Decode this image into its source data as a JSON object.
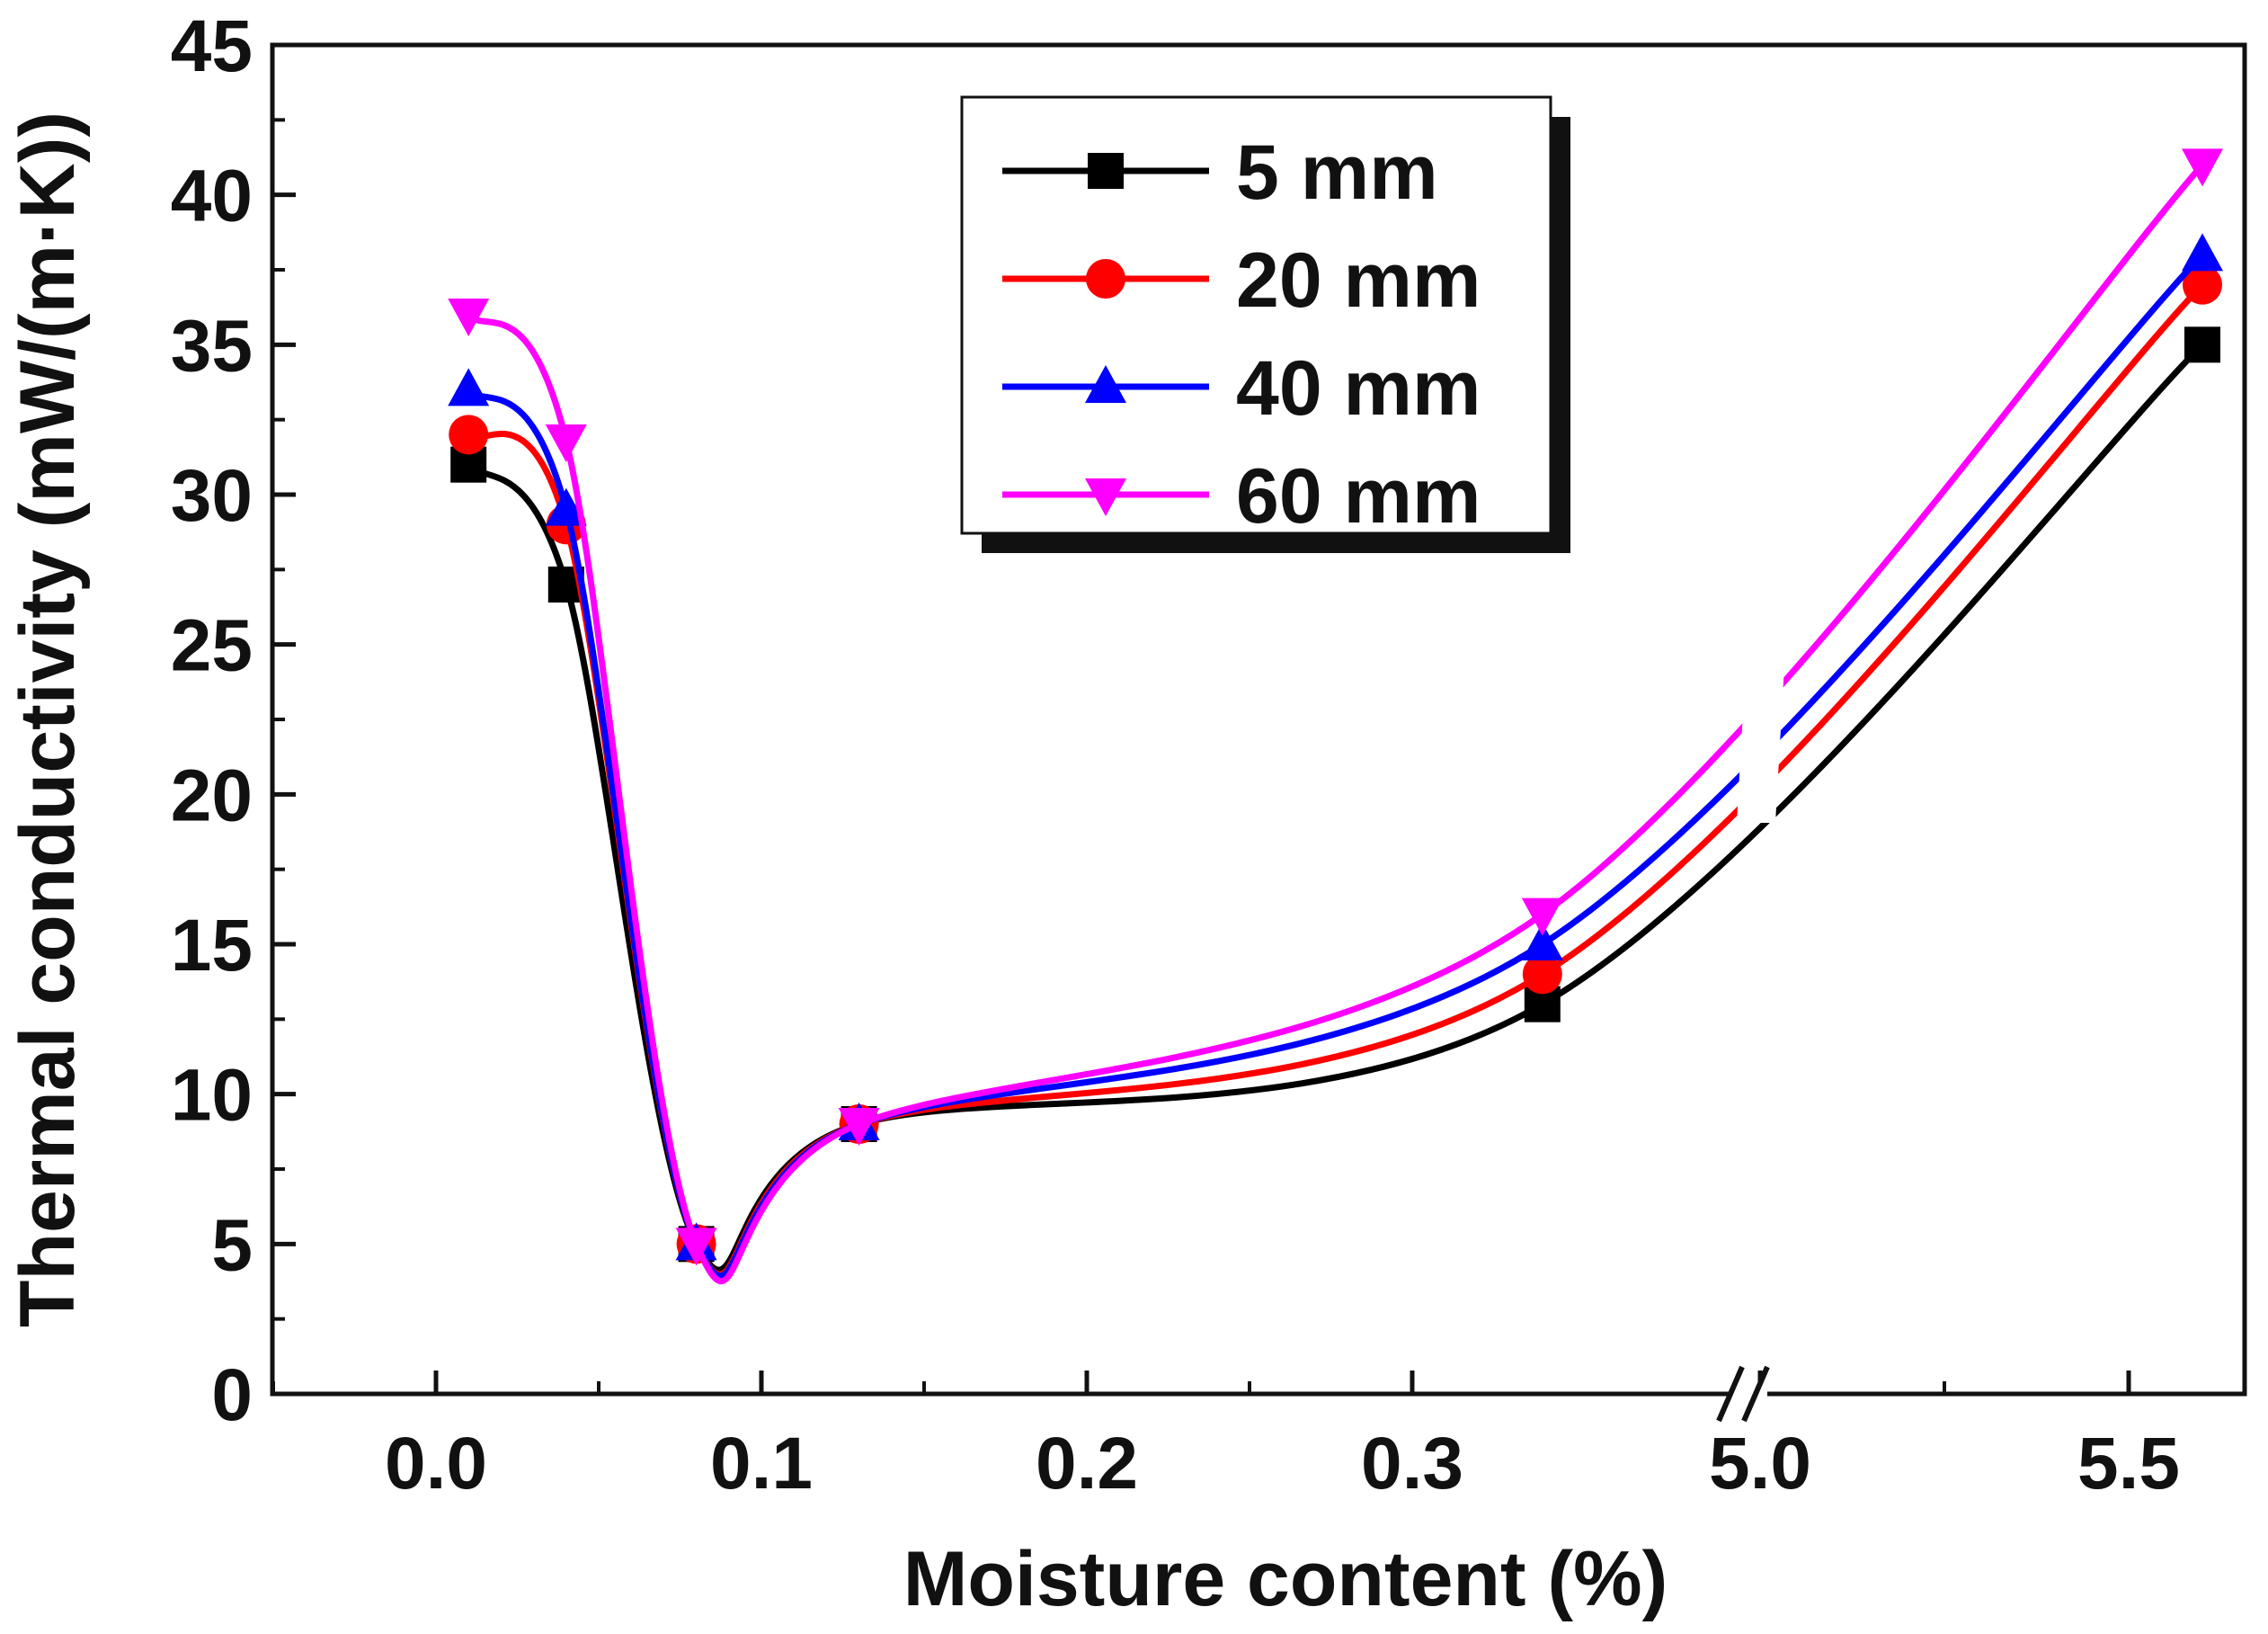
{
  "chart_data": {
    "type": "line",
    "title": "",
    "xlabel": "Moisture content (%)",
    "ylabel": "Thermal conductivity (mW/(m·K))",
    "ylim": [
      0,
      45
    ],
    "yticks": [
      0,
      5,
      10,
      15,
      20,
      25,
      30,
      35,
      40,
      45
    ],
    "xticks": [
      0.0,
      0.1,
      0.2,
      0.3,
      5.0,
      5.5
    ],
    "xtick_labels": [
      "0.0",
      "0.1",
      "0.2",
      "0.3",
      "5.0",
      "5.5"
    ],
    "x_axis_break": "between 0.3 and 5.0",
    "x": [
      0.01,
      0.04,
      0.08,
      0.13,
      0.34,
      5.6
    ],
    "series": [
      {
        "name": "5 mm",
        "color": "#000000",
        "marker": "square",
        "values": [
          31,
          27,
          5,
          9,
          13,
          35
        ]
      },
      {
        "name": "20 mm",
        "color": "#ff0000",
        "marker": "circle",
        "values": [
          32,
          29,
          5,
          9,
          14,
          37
        ]
      },
      {
        "name": "40 mm",
        "color": "#0000ff",
        "marker": "triangle-up",
        "values": [
          33.5,
          29.5,
          5,
          9,
          15,
          38
        ]
      },
      {
        "name": "60 mm",
        "color": "#ff00ff",
        "marker": "triangle-down",
        "values": [
          36,
          31.8,
          5,
          9,
          16,
          41
        ]
      }
    ],
    "legend_position": "top-center",
    "grid": false
  }
}
